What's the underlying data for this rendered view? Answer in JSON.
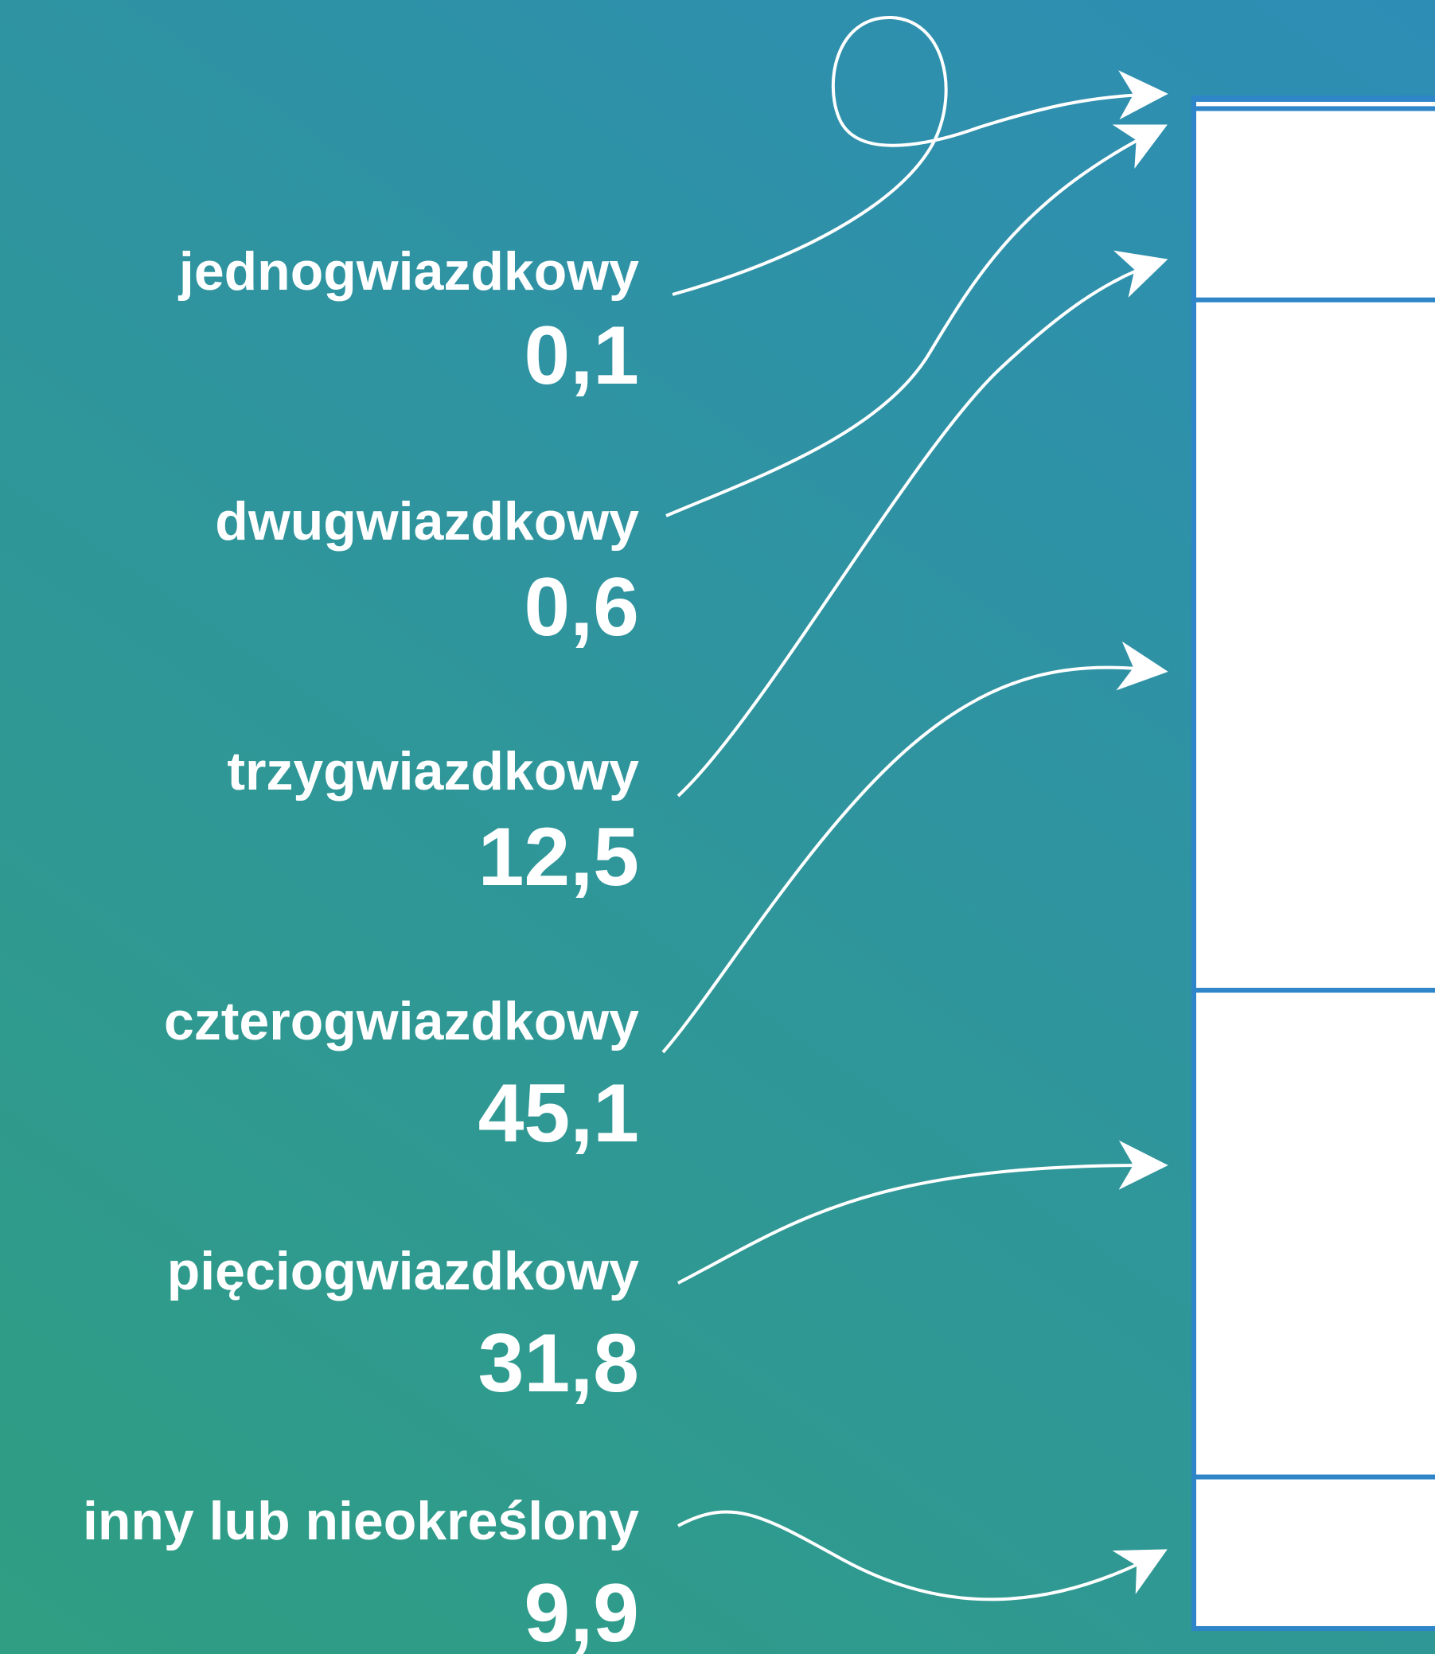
{
  "chart_data": {
    "type": "bar",
    "orientation": "stacked-column",
    "unit": "%",
    "categories": [
      "jednogwiazdkowy",
      "dwugwiazdkowy",
      "trzygwiazdkowy",
      "czterogwiazdkowy",
      "pięciogwiazdkowy",
      "inny lub nieokreślony"
    ],
    "value_labels": [
      "0,1",
      "0,6",
      "12,5",
      "45,1",
      "31,8",
      "9,9"
    ],
    "values": [
      0.1,
      0.6,
      12.5,
      45.1,
      31.8,
      9.9
    ],
    "colors": {
      "segment_fill": "#ffffff",
      "segment_border": "#2e86c8",
      "text": "#ffffff",
      "connector": "#ffffff"
    }
  }
}
